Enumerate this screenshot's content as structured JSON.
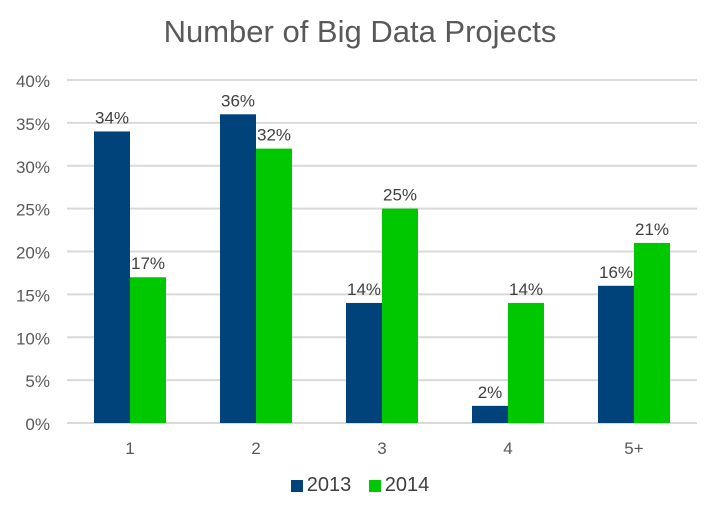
{
  "chart_data": {
    "type": "bar",
    "title": "Number of Big Data Projects",
    "xlabel": "",
    "ylabel": "",
    "categories": [
      "1",
      "2",
      "3",
      "4",
      "5+"
    ],
    "series": [
      {
        "name": "2013",
        "color": "#00427A",
        "values": [
          34,
          36,
          14,
          2,
          16
        ],
        "labels": [
          "34%",
          "36%",
          "14%",
          "2%",
          "16%"
        ]
      },
      {
        "name": "2014",
        "color": "#00C800",
        "values": [
          17,
          32,
          25,
          14,
          21
        ],
        "labels": [
          "17%",
          "32%",
          "25%",
          "14%",
          "21%"
        ]
      }
    ],
    "ylim": [
      0,
      40
    ],
    "yticks": [
      0,
      5,
      10,
      15,
      20,
      25,
      30,
      35,
      40
    ],
    "ytick_labels": [
      "0%",
      "5%",
      "10%",
      "15%",
      "20%",
      "25%",
      "30%",
      "35%",
      "40%"
    ],
    "grid": true,
    "legend_position": "bottom",
    "colors": {
      "text": "#595959",
      "gridline": "#D9D9D9"
    }
  }
}
